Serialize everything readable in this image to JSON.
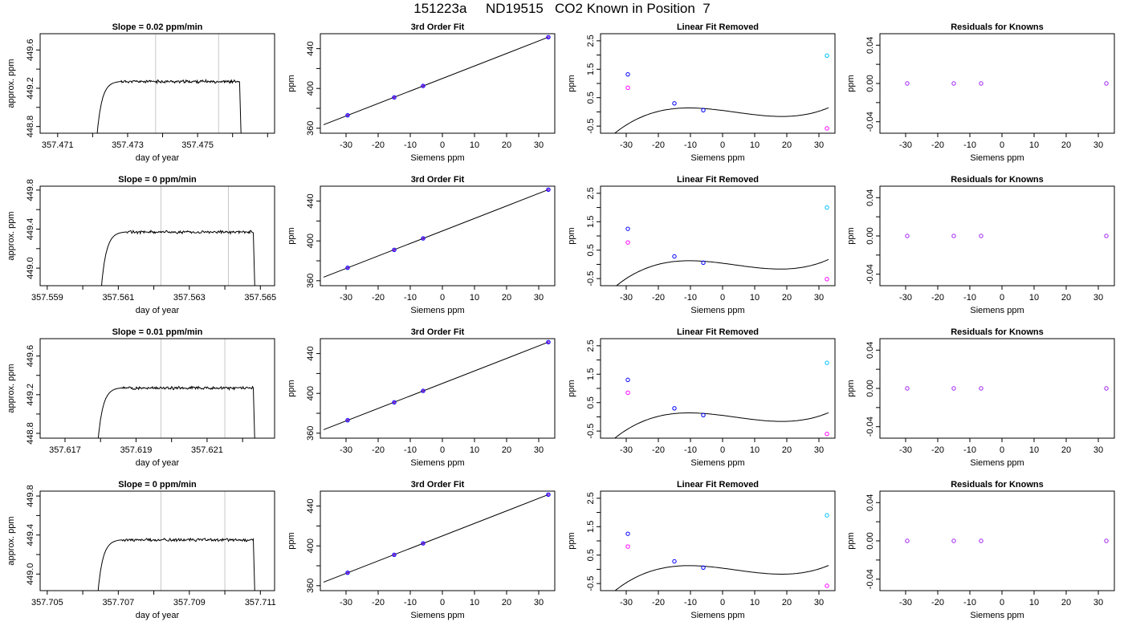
{
  "figure": {
    "title": "151223a     ND19515   CO2 Known in Position  7"
  },
  "style": {
    "trace_color": "#000000",
    "vline_color": "#c8c8c8",
    "pt_blue": "#0000ff",
    "pt_purple": "#a020f0",
    "pt_cyan": "#00bfff",
    "pt_magenta": "#ff00ff"
  },
  "chart_data": [
    {
      "type": "line",
      "row": 1,
      "title": "Slope =  0.02  ppm/min",
      "xlabel": "day of year",
      "ylabel": "approx. ppm",
      "xlim": [
        357.4705,
        357.4772
      ],
      "ylim": [
        448.73,
        449.77
      ],
      "xticks": [
        357.471,
        357.472,
        357.473,
        357.474,
        357.475,
        357.476,
        357.477
      ],
      "xtick_labels": [
        "357.471",
        "",
        "357.473",
        "",
        "357.475",
        "",
        ""
      ],
      "yticks": [
        448.8,
        449.0,
        449.2,
        449.4,
        449.6
      ],
      "ytick_labels": [
        "448.8",
        "",
        "449.2",
        "",
        "449.6"
      ],
      "vlines": [
        357.4738,
        357.4756
      ],
      "trace": {
        "x_start": 357.4721,
        "x_rise_end": 357.4728,
        "x_end": 357.4762,
        "x_fall_end": 357.47625,
        "plateau": 449.27,
        "y_low": 448.6,
        "noise": 0.012
      }
    },
    {
      "type": "line",
      "row": 1,
      "title": "3rd Order Fit",
      "xlabel": "Siemens ppm",
      "ylabel": "ppm",
      "xlim": [
        -38,
        35
      ],
      "ylim": [
        355,
        455
      ],
      "xticks": [
        -30,
        -20,
        -10,
        0,
        10,
        20,
        30
      ],
      "xtick_labels": [
        "-30",
        "-20",
        "-10",
        "0",
        "10",
        "20",
        "30"
      ],
      "yticks": [
        360,
        380,
        400,
        420,
        440
      ],
      "ytick_labels": [
        "360",
        "",
        "400",
        "",
        "440"
      ],
      "line": {
        "x0": -37,
        "y0": 363.5,
        "x1": 33,
        "y1": 451.5
      },
      "points": [
        {
          "x": -29.5,
          "y": 373
        },
        {
          "x": -15,
          "y": 391
        },
        {
          "x": -6,
          "y": 402.5
        },
        {
          "x": 33,
          "y": 451.5
        }
      ]
    },
    {
      "type": "line",
      "row": 1,
      "title": "Linear Fit Removed",
      "xlabel": "Siemens ppm",
      "ylabel": "ppm",
      "xlim": [
        -38,
        35
      ],
      "ylim": [
        -0.75,
        2.75
      ],
      "xticks": [
        -30,
        -20,
        -10,
        0,
        10,
        20,
        30
      ],
      "xtick_labels": [
        "-30",
        "-20",
        "-10",
        "0",
        "10",
        "20",
        "30"
      ],
      "yticks": [
        -0.5,
        0.0,
        0.5,
        1.0,
        1.5,
        2.0,
        2.5
      ],
      "ytick_labels": [
        "-0.5",
        "",
        "0.5",
        "",
        "1.5",
        "",
        "2.5"
      ],
      "curve": {
        "x0": -37,
        "x1": 33,
        "a": 2.5e-05,
        "b": -0.0003,
        "c": -0.0144,
        "d": 0.05
      },
      "points": [
        {
          "x": -29.5,
          "y": 1.32,
          "color": "pt_blue"
        },
        {
          "x": -29.5,
          "y": 0.85,
          "color": "pt_magenta"
        },
        {
          "x": -15,
          "y": 0.3,
          "color": "pt_blue"
        },
        {
          "x": -6,
          "y": 0.06,
          "color": "pt_blue"
        },
        {
          "x": 32.5,
          "y": 1.98,
          "color": "pt_cyan"
        },
        {
          "x": 32.5,
          "y": -0.58,
          "color": "pt_magenta"
        }
      ]
    },
    {
      "type": "scatter",
      "row": 1,
      "title": "Residuals for Knowns",
      "xlabel": "Siemens ppm",
      "ylabel": "ppm",
      "xlim": [
        -38,
        35
      ],
      "ylim": [
        -0.052,
        0.052
      ],
      "xticks": [
        -30,
        -20,
        -10,
        0,
        10,
        20,
        30
      ],
      "xtick_labels": [
        "-30",
        "-20",
        "-10",
        "0",
        "10",
        "20",
        "30"
      ],
      "yticks": [
        -0.04,
        -0.02,
        0.0,
        0.02,
        0.04
      ],
      "ytick_labels": [
        "-0.04",
        "",
        "0.00",
        "",
        "0.04"
      ],
      "points": [
        {
          "x": -29.5,
          "y": 0
        },
        {
          "x": -15,
          "y": 0
        },
        {
          "x": -6.5,
          "y": 0
        },
        {
          "x": 32.5,
          "y": 0
        }
      ]
    },
    {
      "type": "line",
      "row": 2,
      "title": "Slope =  0  ppm/min",
      "xlabel": "day of year",
      "ylabel": "approx. ppm",
      "xlim": [
        357.5588,
        357.5654
      ],
      "ylim": [
        448.82,
        449.84
      ],
      "xticks": [
        357.559,
        357.56,
        357.561,
        357.562,
        357.563,
        357.564,
        357.565
      ],
      "xtick_labels": [
        "357.559",
        "",
        "357.561",
        "",
        "357.563",
        "",
        "357.565"
      ],
      "yticks": [
        449.0,
        449.2,
        449.4,
        449.6,
        449.8
      ],
      "ytick_labels": [
        "449.0",
        "",
        "449.4",
        "",
        "449.8"
      ],
      "vlines": [
        357.5622,
        357.5641
      ],
      "trace": {
        "x_start": 357.5605,
        "x_rise_end": 357.5612,
        "x_end": 357.5648,
        "x_fall_end": 357.56485,
        "plateau": 449.37,
        "y_low": 448.7,
        "noise": 0.012
      }
    },
    {
      "type": "line",
      "row": 2,
      "title": "3rd Order Fit",
      "xlabel": "Siemens ppm",
      "ylabel": "ppm",
      "xlim": [
        -38,
        35
      ],
      "ylim": [
        355,
        455
      ],
      "xticks": [
        -30,
        -20,
        -10,
        0,
        10,
        20,
        30
      ],
      "xtick_labels": [
        "-30",
        "-20",
        "-10",
        "0",
        "10",
        "20",
        "30"
      ],
      "yticks": [
        360,
        380,
        400,
        420,
        440
      ],
      "ytick_labels": [
        "360",
        "",
        "400",
        "",
        "440"
      ],
      "line": {
        "x0": -37,
        "y0": 363.5,
        "x1": 33,
        "y1": 451.5
      },
      "points": [
        {
          "x": -29.5,
          "y": 373
        },
        {
          "x": -15,
          "y": 391
        },
        {
          "x": -6,
          "y": 402.5
        },
        {
          "x": 33,
          "y": 451.5
        }
      ]
    },
    {
      "type": "line",
      "row": 2,
      "title": "Linear Fit Removed",
      "xlabel": "Siemens ppm",
      "ylabel": "ppm",
      "xlim": [
        -38,
        35
      ],
      "ylim": [
        -0.75,
        2.75
      ],
      "xticks": [
        -30,
        -20,
        -10,
        0,
        10,
        20,
        30
      ],
      "xtick_labels": [
        "-30",
        "-20",
        "-10",
        "0",
        "10",
        "20",
        "30"
      ],
      "yticks": [
        -0.5,
        0.0,
        0.5,
        1.0,
        1.5,
        2.0,
        2.5
      ],
      "ytick_labels": [
        "-0.5",
        "",
        "0.5",
        "",
        "1.5",
        "",
        "2.5"
      ],
      "curve": {
        "x0": -37,
        "x1": 33,
        "a": 2.6e-05,
        "b": -0.0003,
        "c": -0.0144,
        "d": 0.04
      },
      "points": [
        {
          "x": -29.5,
          "y": 1.25,
          "color": "pt_blue"
        },
        {
          "x": -29.5,
          "y": 0.77,
          "color": "pt_magenta"
        },
        {
          "x": -15,
          "y": 0.28,
          "color": "pt_blue"
        },
        {
          "x": -6,
          "y": 0.06,
          "color": "pt_blue"
        },
        {
          "x": 32.5,
          "y": 2.0,
          "color": "pt_cyan"
        },
        {
          "x": 32.5,
          "y": -0.52,
          "color": "pt_magenta"
        }
      ]
    },
    {
      "type": "scatter",
      "row": 2,
      "title": "Residuals for Knowns",
      "xlabel": "Siemens ppm",
      "ylabel": "ppm",
      "xlim": [
        -38,
        35
      ],
      "ylim": [
        -0.052,
        0.052
      ],
      "xticks": [
        -30,
        -20,
        -10,
        0,
        10,
        20,
        30
      ],
      "xtick_labels": [
        "-30",
        "-20",
        "-10",
        "0",
        "10",
        "20",
        "30"
      ],
      "yticks": [
        -0.04,
        -0.02,
        0.0,
        0.02,
        0.04
      ],
      "ytick_labels": [
        "-0.04",
        "",
        "0.00",
        "",
        "0.04"
      ],
      "points": [
        {
          "x": -29.5,
          "y": 0
        },
        {
          "x": -15,
          "y": 0
        },
        {
          "x": -6.5,
          "y": 0
        },
        {
          "x": 32.5,
          "y": 0
        }
      ]
    },
    {
      "type": "line",
      "row": 3,
      "title": "Slope =  0.01  ppm/min",
      "xlabel": "day of year",
      "ylabel": "approx. ppm",
      "xlim": [
        357.6163,
        357.6229
      ],
      "ylim": [
        448.75,
        449.78
      ],
      "xticks": [
        357.617,
        357.618,
        357.619,
        357.62,
        357.621,
        357.622
      ],
      "xtick_labels": [
        "357.617",
        "",
        "357.619",
        "",
        "357.621",
        ""
      ],
      "yticks": [
        448.8,
        449.0,
        449.2,
        449.4,
        449.6
      ],
      "ytick_labels": [
        "448.8",
        "",
        "449.2",
        "",
        "449.6"
      ],
      "vlines": [
        357.6197,
        357.6215
      ],
      "trace": {
        "x_start": 357.6179,
        "x_rise_end": 357.6186,
        "x_end": 357.6223,
        "x_fall_end": 357.62235,
        "plateau": 449.27,
        "y_low": 448.6,
        "noise": 0.012
      }
    },
    {
      "type": "line",
      "row": 3,
      "title": "3rd Order Fit",
      "xlabel": "Siemens ppm",
      "ylabel": "ppm",
      "xlim": [
        -38,
        35
      ],
      "ylim": [
        355,
        455
      ],
      "xticks": [
        -30,
        -20,
        -10,
        0,
        10,
        20,
        30
      ],
      "xtick_labels": [
        "-30",
        "-20",
        "-10",
        "0",
        "10",
        "20",
        "30"
      ],
      "yticks": [
        360,
        380,
        400,
        420,
        440
      ],
      "ytick_labels": [
        "360",
        "",
        "400",
        "",
        "440"
      ],
      "line": {
        "x0": -37,
        "y0": 363.5,
        "x1": 33,
        "y1": 451.5
      },
      "points": [
        {
          "x": -29.5,
          "y": 373
        },
        {
          "x": -15,
          "y": 391
        },
        {
          "x": -6,
          "y": 402.5
        },
        {
          "x": 33,
          "y": 451.5
        }
      ]
    },
    {
      "type": "line",
      "row": 3,
      "title": "Linear Fit Removed",
      "xlabel": "Siemens ppm",
      "ylabel": "ppm",
      "xlim": [
        -38,
        35
      ],
      "ylim": [
        -0.75,
        2.75
      ],
      "xticks": [
        -30,
        -20,
        -10,
        0,
        10,
        20,
        30
      ],
      "xtick_labels": [
        "-30",
        "-20",
        "-10",
        "0",
        "10",
        "20",
        "30"
      ],
      "yticks": [
        -0.5,
        0.0,
        0.5,
        1.0,
        1.5,
        2.0,
        2.5
      ],
      "ytick_labels": [
        "-0.5",
        "",
        "0.5",
        "",
        "1.5",
        "",
        "2.5"
      ],
      "curve": {
        "x0": -37,
        "x1": 33,
        "a": 2.5e-05,
        "b": -0.0003,
        "c": -0.0144,
        "d": 0.05
      },
      "points": [
        {
          "x": -29.5,
          "y": 1.3,
          "color": "pt_blue"
        },
        {
          "x": -29.5,
          "y": 0.85,
          "color": "pt_magenta"
        },
        {
          "x": -15,
          "y": 0.3,
          "color": "pt_blue"
        },
        {
          "x": -6,
          "y": 0.06,
          "color": "pt_blue"
        },
        {
          "x": 32.5,
          "y": 1.9,
          "color": "pt_cyan"
        },
        {
          "x": 32.5,
          "y": -0.6,
          "color": "pt_magenta"
        }
      ]
    },
    {
      "type": "scatter",
      "row": 3,
      "title": "Residuals for Knowns",
      "xlabel": "Siemens ppm",
      "ylabel": "ppm",
      "xlim": [
        -38,
        35
      ],
      "ylim": [
        -0.052,
        0.052
      ],
      "xticks": [
        -30,
        -20,
        -10,
        0,
        10,
        20,
        30
      ],
      "xtick_labels": [
        "-30",
        "-20",
        "-10",
        "0",
        "10",
        "20",
        "30"
      ],
      "yticks": [
        -0.04,
        -0.02,
        0.0,
        0.02,
        0.04
      ],
      "ytick_labels": [
        "-0.04",
        "",
        "0.00",
        "",
        "0.04"
      ],
      "points": [
        {
          "x": -29.5,
          "y": 0
        },
        {
          "x": -15,
          "y": 0
        },
        {
          "x": -6.5,
          "y": 0
        },
        {
          "x": 32.5,
          "y": 0
        }
      ]
    },
    {
      "type": "line",
      "row": 4,
      "title": "Slope =  0  ppm/min",
      "xlabel": "day of year",
      "ylabel": "approx. ppm",
      "xlim": [
        357.7048,
        357.7114
      ],
      "ylim": [
        448.83,
        449.85
      ],
      "xticks": [
        357.705,
        357.706,
        357.707,
        357.708,
        357.709,
        357.71,
        357.711
      ],
      "xtick_labels": [
        "357.705",
        "",
        "357.707",
        "",
        "357.709",
        "",
        "357.711"
      ],
      "yticks": [
        449.0,
        449.2,
        449.4,
        449.6,
        449.8
      ],
      "ytick_labels": [
        "449.0",
        "",
        "449.4",
        "",
        "449.8"
      ],
      "vlines": [
        357.7082,
        357.71
      ],
      "trace": {
        "x_start": 357.7064,
        "x_rise_end": 357.7071,
        "x_end": 357.7108,
        "x_fall_end": 357.71085,
        "plateau": 449.35,
        "y_low": 448.7,
        "noise": 0.012
      }
    },
    {
      "type": "line",
      "row": 4,
      "title": "3rd Order Fit",
      "xlabel": "Siemens ppm",
      "ylabel": "ppm",
      "xlim": [
        -38,
        35
      ],
      "ylim": [
        355,
        455
      ],
      "xticks": [
        -30,
        -20,
        -10,
        0,
        10,
        20,
        30
      ],
      "xtick_labels": [
        "-30",
        "-20",
        "-10",
        "0",
        "10",
        "20",
        "30"
      ],
      "yticks": [
        360,
        380,
        400,
        420,
        440
      ],
      "ytick_labels": [
        "360",
        "",
        "400",
        "",
        "440"
      ],
      "line": {
        "x0": -37,
        "y0": 363.5,
        "x1": 33,
        "y1": 451.5
      },
      "points": [
        {
          "x": -29.5,
          "y": 373
        },
        {
          "x": -15,
          "y": 391
        },
        {
          "x": -6,
          "y": 402.5
        },
        {
          "x": 33,
          "y": 451.5
        }
      ]
    },
    {
      "type": "line",
      "row": 4,
      "title": "Linear Fit Removed",
      "xlabel": "Siemens ppm",
      "ylabel": "ppm",
      "xlim": [
        -38,
        35
      ],
      "ylim": [
        -0.75,
        2.75
      ],
      "xticks": [
        -30,
        -20,
        -10,
        0,
        10,
        20,
        30
      ],
      "xtick_labels": [
        "-30",
        "-20",
        "-10",
        "0",
        "10",
        "20",
        "30"
      ],
      "yticks": [
        -0.5,
        0.0,
        0.5,
        1.0,
        1.5,
        2.0,
        2.5
      ],
      "ytick_labels": [
        "-0.5",
        "",
        "0.5",
        "",
        "1.5",
        "",
        "2.5"
      ],
      "curve": {
        "x0": -37,
        "x1": 33,
        "a": 2.5e-05,
        "b": -0.0003,
        "c": -0.0144,
        "d": 0.04
      },
      "points": [
        {
          "x": -29.5,
          "y": 1.25,
          "color": "pt_blue"
        },
        {
          "x": -29.5,
          "y": 0.8,
          "color": "pt_magenta"
        },
        {
          "x": -15,
          "y": 0.28,
          "color": "pt_blue"
        },
        {
          "x": -6,
          "y": 0.06,
          "color": "pt_blue"
        },
        {
          "x": 32.5,
          "y": 1.9,
          "color": "pt_cyan"
        },
        {
          "x": 32.5,
          "y": -0.58,
          "color": "pt_magenta"
        }
      ]
    },
    {
      "type": "scatter",
      "row": 4,
      "title": "Residuals for Knowns",
      "xlabel": "Siemens ppm",
      "ylabel": "ppm",
      "xlim": [
        -38,
        35
      ],
      "ylim": [
        -0.052,
        0.052
      ],
      "xticks": [
        -30,
        -20,
        -10,
        0,
        10,
        20,
        30
      ],
      "xtick_labels": [
        "-30",
        "-20",
        "-10",
        "0",
        "10",
        "20",
        "30"
      ],
      "yticks": [
        -0.04,
        -0.02,
        0.0,
        0.02,
        0.04
      ],
      "ytick_labels": [
        "-0.04",
        "",
        "0.00",
        "",
        "0.04"
      ],
      "points": [
        {
          "x": -29.5,
          "y": 0
        },
        {
          "x": -15,
          "y": 0
        },
        {
          "x": -6.5,
          "y": 0
        },
        {
          "x": 32.5,
          "y": 0
        }
      ]
    }
  ]
}
